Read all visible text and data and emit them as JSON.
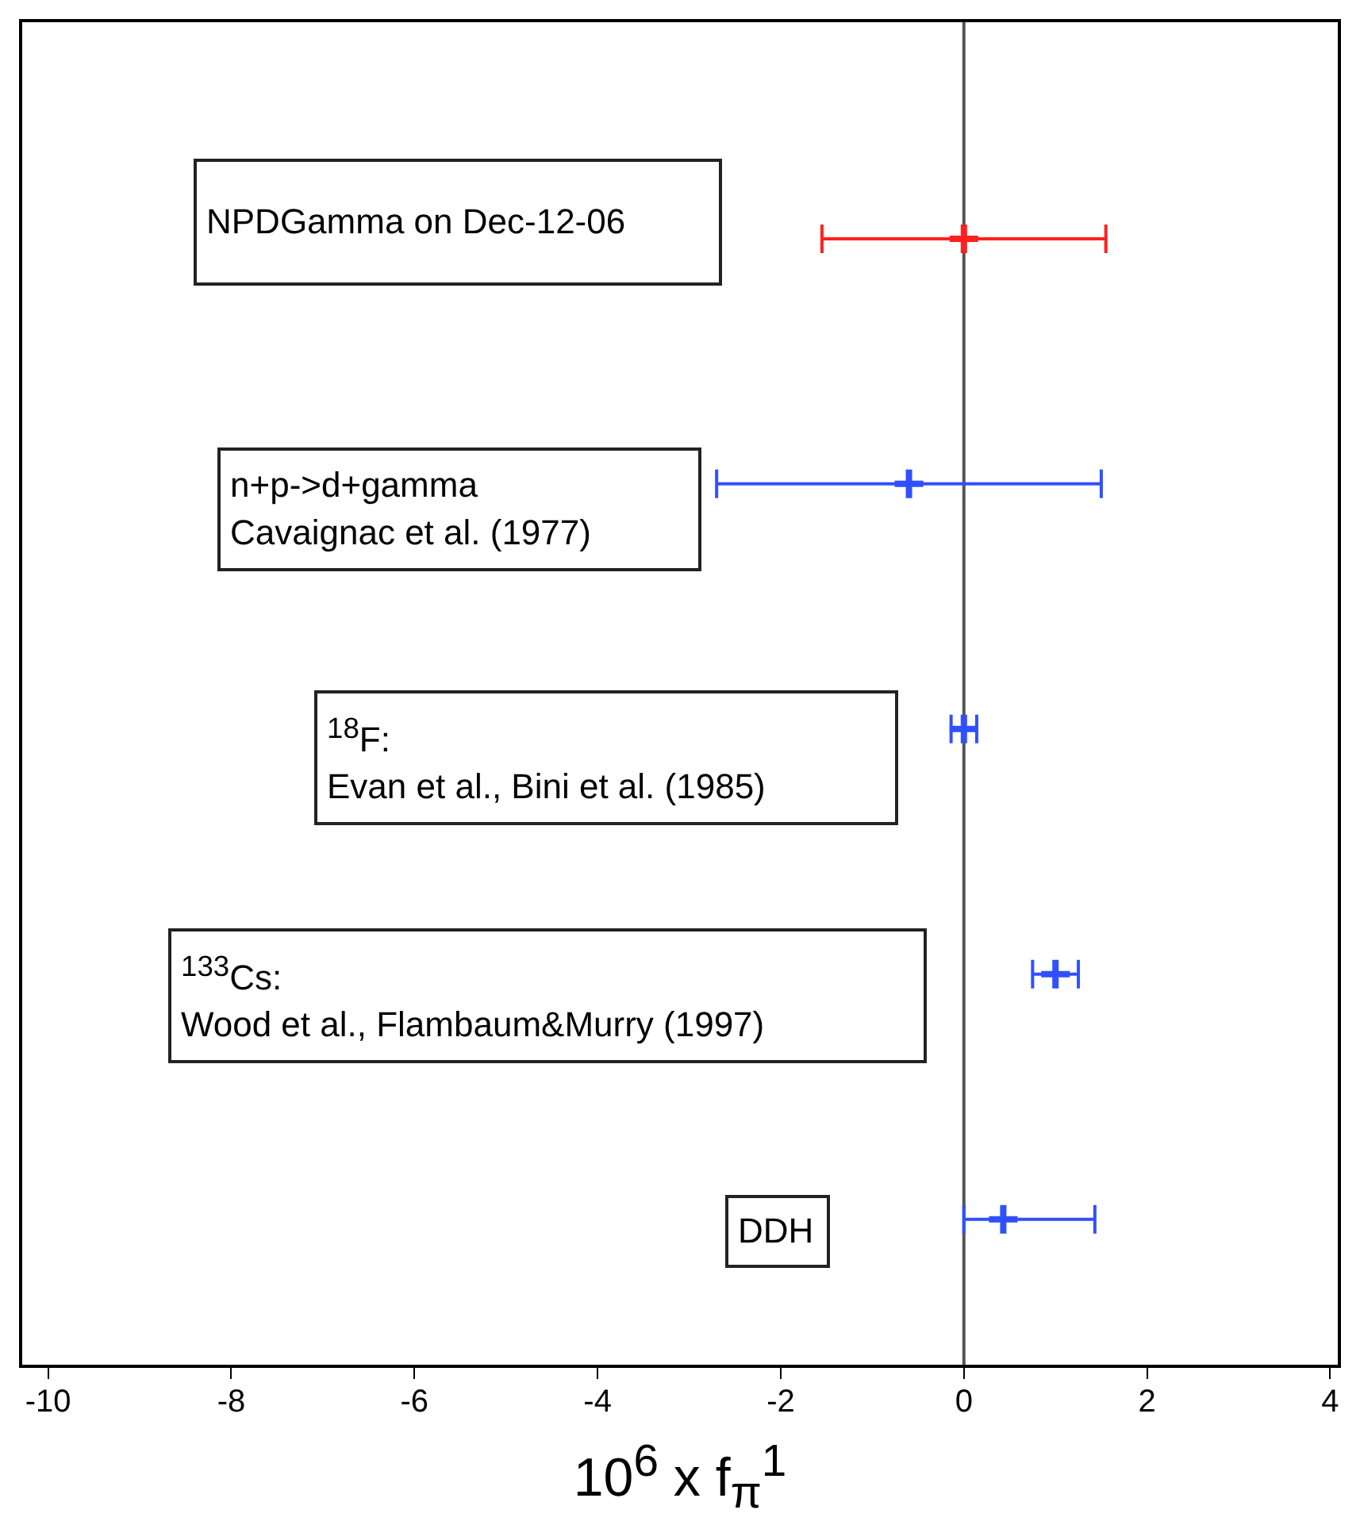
{
  "chart_data": {
    "type": "scatter",
    "orientation": "horizontal",
    "xlabel": "10$^{6}$ x f$_{π}$$^{1}$",
    "categories": [
      null,
      null,
      null,
      null,
      null
    ],
    "series": [
      {
        "color": "#ff2020",
        "values": [
          0,
          null,
          null,
          null,
          null
        ],
        "errors": [
          1.55,
          null,
          null,
          null,
          null
        ]
      },
      {
        "color": "#3050ff",
        "values": [
          null,
          -0.6,
          0,
          1.0,
          0.43
        ],
        "errors": [
          null,
          2.1,
          0.14,
          0.25,
          [
            0,
            1.43
          ]
        ]
      }
    ],
    "xlim": [
      -10.3,
      4.1
    ],
    "xticks": [
      -10,
      -8,
      -6,
      -4,
      -2,
      0,
      2,
      4
    ],
    "ref_lines": [
      {
        "axis": "x",
        "value": 0,
        "color": "#555555"
      }
    ],
    "marker": "cross",
    "grid": false,
    "legend": false,
    "annotations": [
      "NPDGamma on Dec-12-06",
      "n+p->d+gamma\nCavaignac et al. (1977)",
      "$^{18}$F:\nEvan et al., Bini et al. (1985)",
      "$^{133}$Cs:\nWood et al., Flambaum&Murry (1997)",
      "DDH"
    ]
  }
}
